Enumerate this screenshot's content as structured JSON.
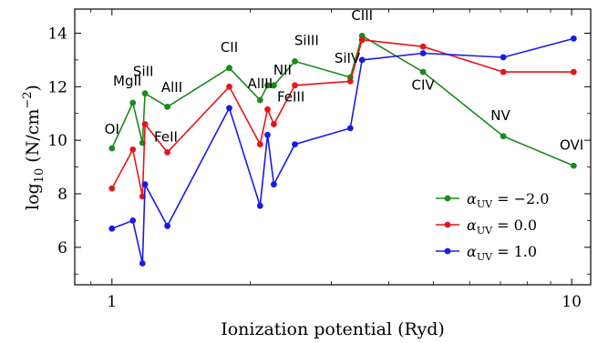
{
  "chart_data": {
    "type": "line",
    "xlabel": "Ionization potential (Ryd)",
    "ylabel_main": "log",
    "ylabel_sub": "10",
    "ylabel_rest": " (N/cm",
    "ylabel_sup": "−2",
    "ylabel_end": ")",
    "xscale": "log",
    "xlim": [
      0.83,
      11.0
    ],
    "ylim": [
      4.6,
      14.9
    ],
    "yticks": [
      6,
      8,
      10,
      12,
      14
    ],
    "ytick_labels": [
      "6",
      "8",
      "10",
      "12",
      "14"
    ],
    "xticks": [
      1,
      10
    ],
    "xtick_labels": [
      "1",
      "10"
    ],
    "legend_position": "lower-right",
    "series": [
      {
        "name_prefix": "α",
        "name_sub": "UV",
        "name_value": " = −2.0",
        "color": "#1a8a1a",
        "points": [
          {
            "x": 1.0,
            "y": 9.7
          },
          {
            "x": 1.11,
            "y": 11.4
          },
          {
            "x": 1.165,
            "y": 9.9
          },
          {
            "x": 1.18,
            "y": 11.75
          },
          {
            "x": 1.32,
            "y": 11.25
          },
          {
            "x": 1.8,
            "y": 12.7
          },
          {
            "x": 2.1,
            "y": 11.5
          },
          {
            "x": 2.18,
            "y": 12.05
          },
          {
            "x": 2.25,
            "y": 12.05
          },
          {
            "x": 2.5,
            "y": 12.95
          },
          {
            "x": 3.3,
            "y": 12.35
          },
          {
            "x": 3.5,
            "y": 13.9
          },
          {
            "x": 4.75,
            "y": 12.55
          },
          {
            "x": 7.1,
            "y": 10.15
          },
          {
            "x": 10.1,
            "y": 9.05
          }
        ]
      },
      {
        "name_prefix": "α",
        "name_sub": "UV",
        "name_value": " = 0.0",
        "color": "#e8141a",
        "points": [
          {
            "x": 1.0,
            "y": 8.2
          },
          {
            "x": 1.11,
            "y": 9.65
          },
          {
            "x": 1.165,
            "y": 7.9
          },
          {
            "x": 1.18,
            "y": 10.6
          },
          {
            "x": 1.32,
            "y": 9.55
          },
          {
            "x": 1.8,
            "y": 12.0
          },
          {
            "x": 2.1,
            "y": 9.85
          },
          {
            "x": 2.18,
            "y": 11.15
          },
          {
            "x": 2.25,
            "y": 10.6
          },
          {
            "x": 2.5,
            "y": 12.05
          },
          {
            "x": 3.3,
            "y": 12.2
          },
          {
            "x": 3.5,
            "y": 13.75
          },
          {
            "x": 4.75,
            "y": 13.5
          },
          {
            "x": 7.1,
            "y": 12.55
          },
          {
            "x": 10.1,
            "y": 12.55
          }
        ]
      },
      {
        "name_prefix": "α",
        "name_sub": "UV",
        "name_value": " = 1.0",
        "color": "#1a1ae8",
        "points": [
          {
            "x": 1.0,
            "y": 6.7
          },
          {
            "x": 1.11,
            "y": 7.0
          },
          {
            "x": 1.165,
            "y": 5.4
          },
          {
            "x": 1.18,
            "y": 8.35
          },
          {
            "x": 1.32,
            "y": 6.8
          },
          {
            "x": 1.8,
            "y": 11.2
          },
          {
            "x": 2.1,
            "y": 7.55
          },
          {
            "x": 2.18,
            "y": 10.2
          },
          {
            "x": 2.25,
            "y": 8.35
          },
          {
            "x": 2.5,
            "y": 9.85
          },
          {
            "x": 3.3,
            "y": 10.45
          },
          {
            "x": 3.5,
            "y": 13.0
          },
          {
            "x": 4.75,
            "y": 13.25
          },
          {
            "x": 7.1,
            "y": 13.1
          },
          {
            "x": 10.1,
            "y": 13.8
          }
        ]
      }
    ],
    "annotations": [
      {
        "text": "OI",
        "x": 1.0,
        "y": 10.25
      },
      {
        "text": "MgII",
        "x": 1.08,
        "y": 12.05
      },
      {
        "text": "SiII",
        "x": 1.17,
        "y": 12.4
      },
      {
        "text": "AlII",
        "x": 1.35,
        "y": 11.8
      },
      {
        "text": "FeII",
        "x": 1.31,
        "y": 9.95
      },
      {
        "text": "CII",
        "x": 1.8,
        "y": 13.3
      },
      {
        "text": "AlIII",
        "x": 2.1,
        "y": 11.95
      },
      {
        "text": "NII",
        "x": 2.35,
        "y": 12.45
      },
      {
        "text": "FeIII",
        "x": 2.45,
        "y": 11.45
      },
      {
        "text": "SiIII",
        "x": 2.65,
        "y": 13.55
      },
      {
        "text": "SiIV",
        "x": 3.25,
        "y": 12.9
      },
      {
        "text": "CIII",
        "x": 3.5,
        "y": 14.5
      },
      {
        "text": "CIV",
        "x": 4.75,
        "y": 11.9
      },
      {
        "text": "NV",
        "x": 7.0,
        "y": 10.75
      },
      {
        "text": "OVI",
        "x": 10.0,
        "y": 9.65
      }
    ]
  }
}
